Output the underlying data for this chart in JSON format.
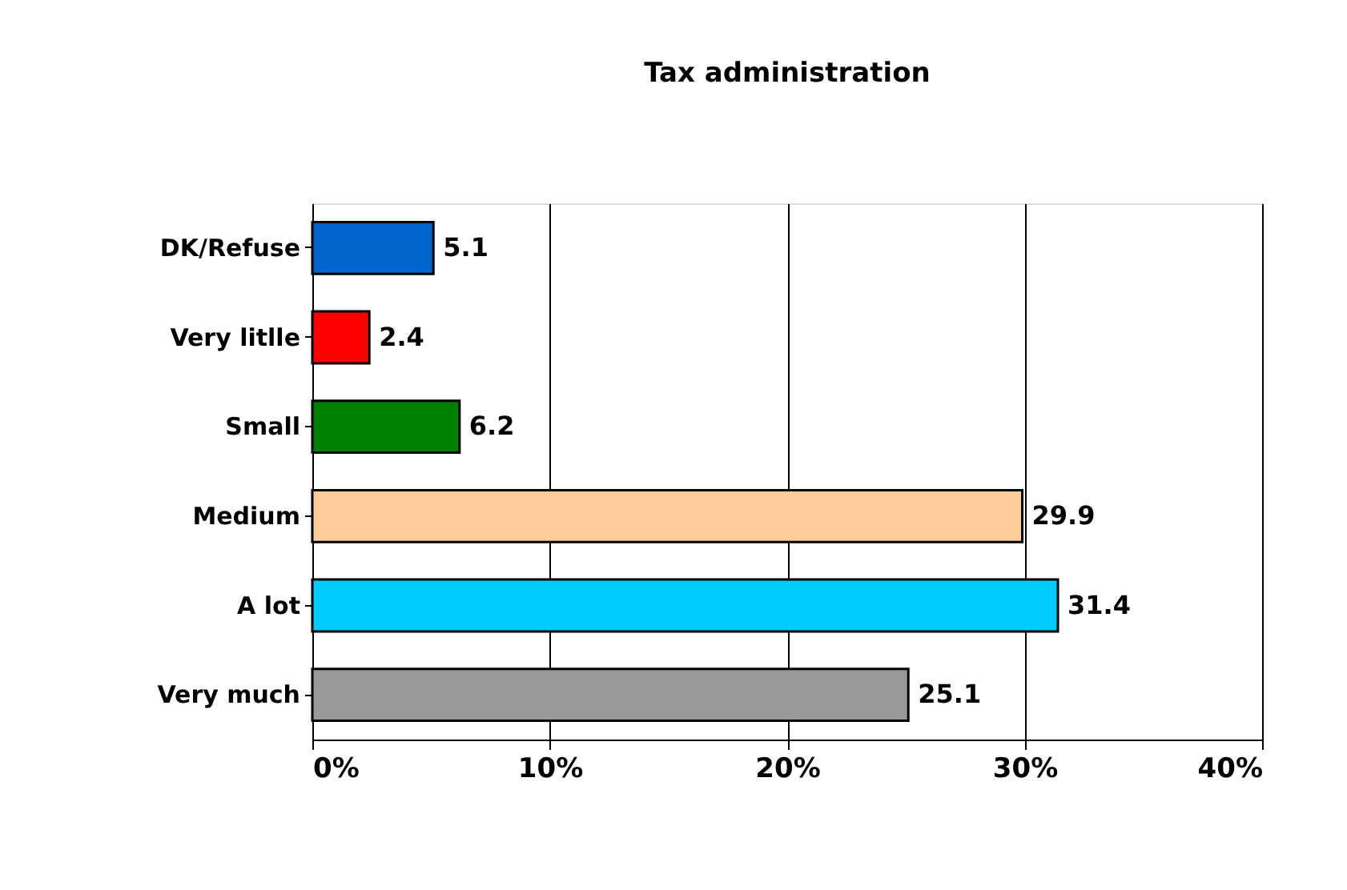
{
  "chart_data": {
    "type": "bar",
    "orientation": "horizontal",
    "title": "Tax administration",
    "categories": [
      "DK/Refuse",
      "Very litlle",
      "Small",
      "Medium",
      "A lot",
      "Very much"
    ],
    "values": [
      5.1,
      2.4,
      6.2,
      29.9,
      31.4,
      25.1
    ],
    "colors": [
      "#0066cc",
      "#ff0000",
      "#008000",
      "#ffcc99",
      "#00ccff",
      "#999999"
    ],
    "xlim": [
      0,
      40
    ],
    "xticks": [
      {
        "value": 0,
        "label": "0%"
      },
      {
        "value": 10,
        "label": "10%"
      },
      {
        "value": 20,
        "label": "20%"
      },
      {
        "value": 30,
        "label": "30%"
      },
      {
        "value": 40,
        "label": "40%"
      }
    ],
    "grid": "x",
    "data_labels": true
  }
}
